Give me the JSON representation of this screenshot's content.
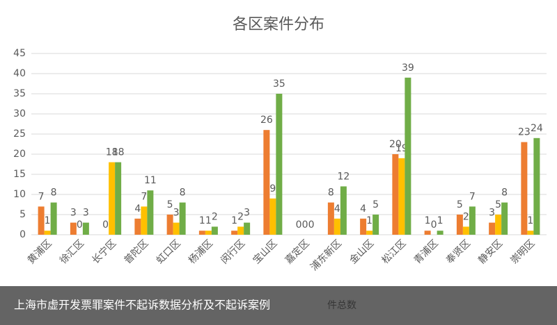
{
  "chart_data": {
    "type": "bar",
    "title": "各区案件分布",
    "categories": [
      "黄浦区",
      "徐汇区",
      "长宁区",
      "普陀区",
      "虹口区",
      "杨浦区",
      "闵行区",
      "宝山区",
      "嘉定区",
      "浦东新区",
      "金山区",
      "松江区",
      "青浦区",
      "奉贤区",
      "静安区",
      "崇明区"
    ],
    "series": [
      {
        "color": "#ed7d31",
        "values": [
          7,
          3,
          0,
          4,
          5,
          1,
          1,
          26,
          0,
          8,
          4,
          20,
          1,
          5,
          3,
          23
        ]
      },
      {
        "color": "#ffc000",
        "values": [
          1,
          0,
          18,
          7,
          3,
          1,
          2,
          9,
          0,
          4,
          1,
          19,
          0,
          2,
          5,
          1
        ]
      },
      {
        "color": "#70ad47",
        "values": [
          8,
          3,
          18,
          11,
          8,
          2,
          3,
          35,
          0,
          12,
          5,
          39,
          1,
          7,
          8,
          24
        ]
      }
    ],
    "ylim": [
      0,
      45
    ],
    "yticks": [
      0,
      5,
      10,
      15,
      20,
      25,
      30,
      35,
      40,
      45
    ],
    "grid": true,
    "legend_text": "件总数"
  },
  "caption": "上海市虚开发票罪案件不起诉数据分析及不起诉案例"
}
